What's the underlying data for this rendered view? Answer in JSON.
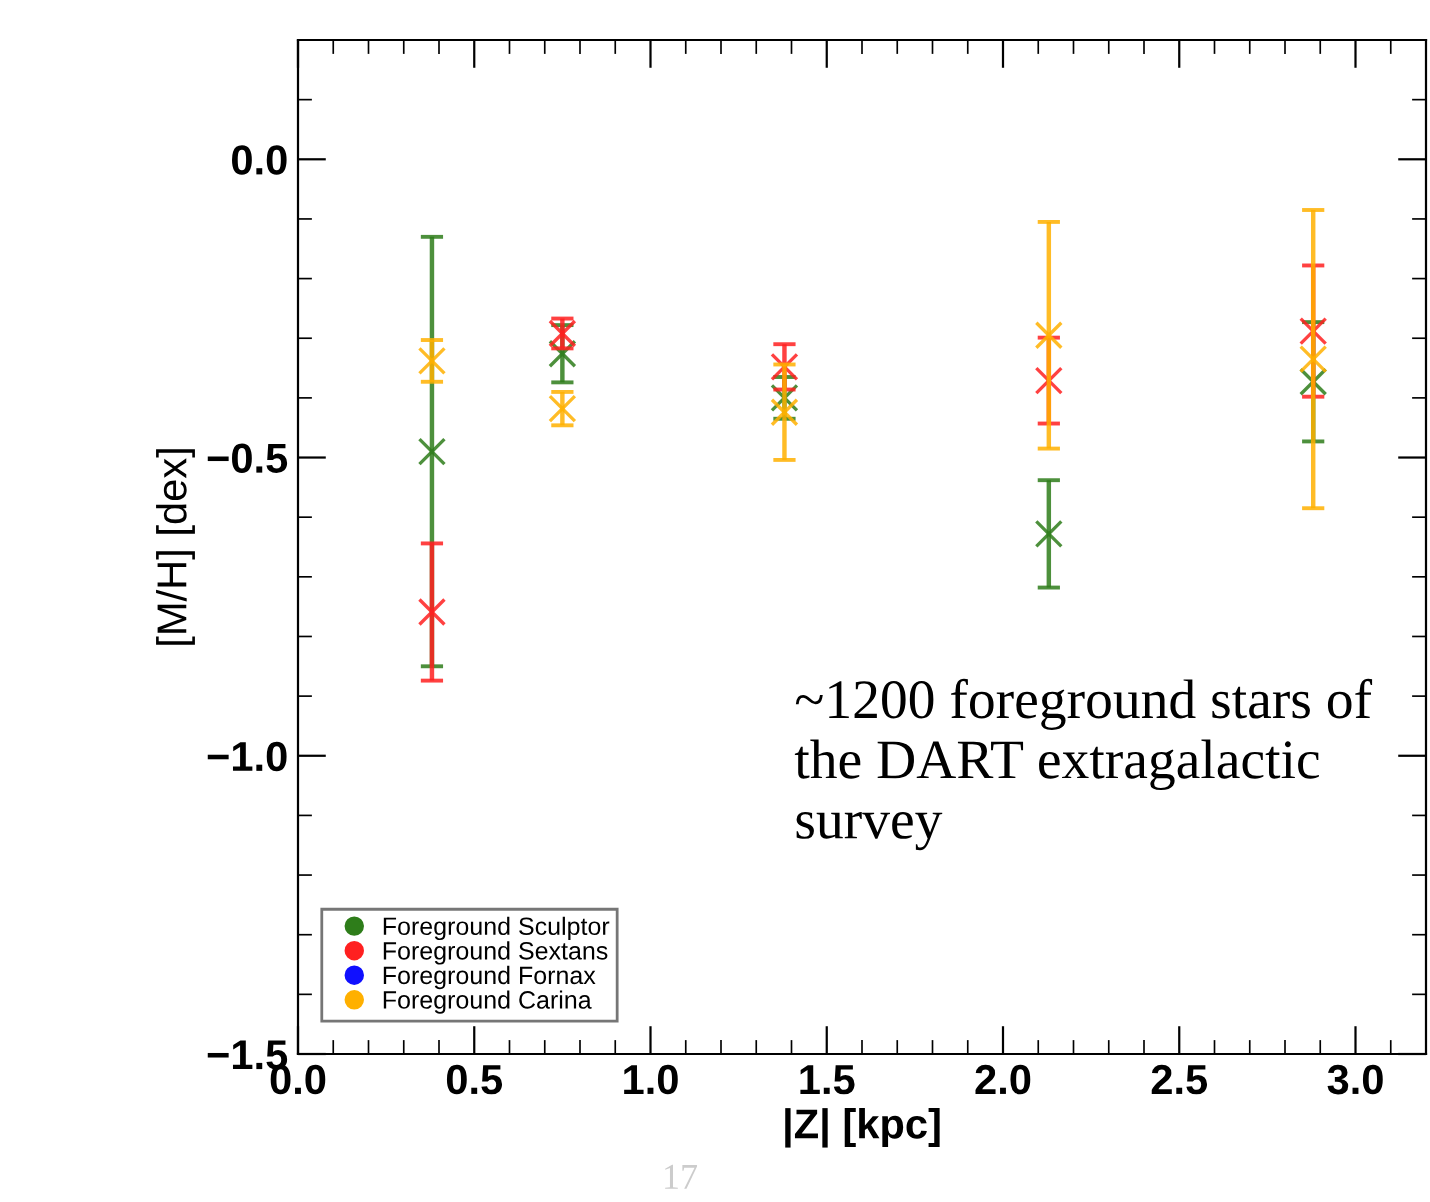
{
  "chart_data": {
    "type": "scatter",
    "xlabel": "|Z| [kpc]",
    "ylabel": "[M/H] [dex]",
    "xlim": [
      0,
      3.2
    ],
    "ylim": [
      -1.5,
      0.2
    ],
    "xticks": [
      {
        "value": 0,
        "label": "0.0"
      },
      {
        "value": 0.5,
        "label": "0.5"
      },
      {
        "value": 1,
        "label": "1.0"
      },
      {
        "value": 1.5,
        "label": "1.5"
      },
      {
        "value": 2,
        "label": "2.0"
      },
      {
        "value": 2.5,
        "label": "2.5"
      },
      {
        "value": 3,
        "label": "3.0"
      }
    ],
    "yticks": [
      {
        "value": -1.5,
        "label": "−1.5"
      },
      {
        "value": -1,
        "label": "−1.0"
      },
      {
        "value": -0.5,
        "label": "−0.5"
      },
      {
        "value": 0,
        "label": "0.0"
      }
    ],
    "marker": "cross",
    "legend": "bottom left",
    "grid": false,
    "series": [
      {
        "name": "Foreground Sculptor",
        "color": "#2e7d1a",
        "x": [
          0.38,
          0.75,
          1.38,
          2.13,
          2.88
        ],
        "values": [
          -0.49,
          -0.326,
          -0.4,
          -0.628,
          -0.373
        ],
        "errors": [
          0.36,
          0.048,
          0.035,
          0.09,
          0.1
        ]
      },
      {
        "name": "Foreground Sextans",
        "color": "#ff2020",
        "x": [
          0.38,
          0.75,
          1.38,
          2.13,
          2.88
        ],
        "values": [
          -0.759,
          -0.292,
          -0.348,
          -0.371,
          -0.288
        ],
        "errors": [
          0.115,
          0.025,
          0.038,
          0.072,
          0.11
        ]
      },
      {
        "name": "Foreground Fornax",
        "color": "#1010ff",
        "values": [
          null,
          null,
          null,
          null,
          null
        ]
      },
      {
        "name": "Foreground Carina",
        "color": "#ffb000",
        "x": [
          0.38,
          0.75,
          1.38,
          2.13,
          2.88
        ],
        "values": [
          -0.338,
          -0.418,
          -0.424,
          -0.295,
          -0.335
        ],
        "errors": [
          0.035,
          0.028,
          0.08,
          0.19,
          0.25
        ]
      }
    ],
    "annotations": [
      "~1200 foreground stars of the DART extragalactic survey",
      "17"
    ]
  }
}
